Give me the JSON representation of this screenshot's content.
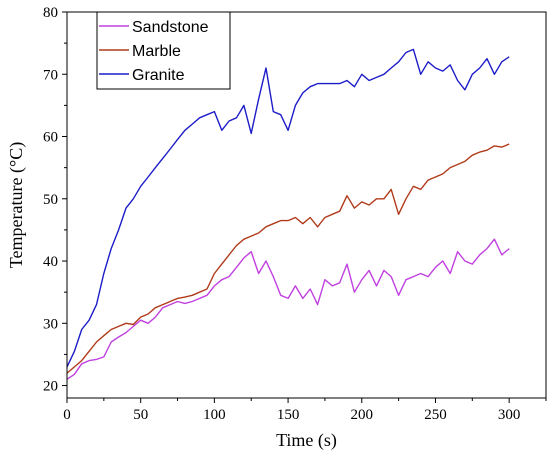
{
  "chart_data": {
    "type": "line",
    "title": "",
    "xlabel": "Time (s)",
    "ylabel": "Temperature (°C)",
    "xlim": [
      0,
      325
    ],
    "ylim": [
      18,
      80
    ],
    "xticks": [
      0,
      50,
      100,
      150,
      200,
      250,
      300
    ],
    "yticks": [
      20,
      30,
      40,
      50,
      60,
      70,
      80
    ],
    "grid": false,
    "legend_position": "top-left",
    "series": [
      {
        "name": "Sandstone",
        "color": "#c040e0",
        "x": [
          0,
          5,
          10,
          15,
          20,
          25,
          30,
          35,
          40,
          45,
          50,
          55,
          60,
          65,
          70,
          75,
          80,
          85,
          90,
          95,
          100,
          105,
          110,
          115,
          120,
          125,
          130,
          135,
          140,
          145,
          150,
          155,
          160,
          165,
          170,
          175,
          180,
          185,
          190,
          195,
          200,
          205,
          210,
          215,
          220,
          225,
          230,
          235,
          240,
          245,
          250,
          255,
          260,
          265,
          270,
          275,
          280,
          285,
          290,
          295,
          300
        ],
        "values": [
          21,
          21.8,
          23.5,
          24,
          24.2,
          24.6,
          27,
          27.8,
          28.5,
          29.5,
          30.5,
          30,
          31,
          32.5,
          33,
          33.5,
          33.2,
          33.5,
          34,
          34.5,
          36,
          37,
          37.5,
          39,
          40.5,
          41.5,
          38,
          40,
          37.5,
          34.5,
          34,
          36,
          34,
          35.5,
          33,
          37,
          36,
          36.5,
          39.5,
          35,
          37,
          38.5,
          36,
          38.5,
          37.5,
          34.5,
          37,
          37.5,
          38,
          37.5,
          39,
          40,
          38,
          41.5,
          40,
          39.5,
          41,
          42,
          43.5,
          41,
          42
        ]
      },
      {
        "name": "Marble",
        "color": "#b03a1a",
        "x": [
          0,
          5,
          10,
          15,
          20,
          25,
          30,
          35,
          40,
          45,
          50,
          55,
          60,
          65,
          70,
          75,
          80,
          85,
          90,
          95,
          100,
          105,
          110,
          115,
          120,
          125,
          130,
          135,
          140,
          145,
          150,
          155,
          160,
          165,
          170,
          175,
          180,
          185,
          190,
          195,
          200,
          205,
          210,
          215,
          220,
          225,
          230,
          235,
          240,
          245,
          250,
          255,
          260,
          265,
          270,
          275,
          280,
          285,
          290,
          295,
          300
        ],
        "values": [
          22,
          23,
          24,
          25.5,
          27,
          28,
          29,
          29.5,
          30,
          29.8,
          31,
          31.5,
          32.5,
          33,
          33.5,
          34,
          34.2,
          34.5,
          35,
          35.5,
          38,
          39.5,
          41,
          42.5,
          43.5,
          44,
          44.5,
          45.5,
          46,
          46.5,
          46.5,
          47,
          46,
          47,
          45.5,
          47,
          47.5,
          48,
          50.5,
          48.5,
          49.5,
          49,
          50,
          50,
          51.5,
          47.5,
          50,
          52,
          51.5,
          53,
          53.5,
          54,
          55,
          55.5,
          56,
          57,
          57.5,
          57.8,
          58.5,
          58.3,
          58.8
        ]
      },
      {
        "name": "Granite",
        "color": "#1c1cc8",
        "x": [
          0,
          5,
          10,
          15,
          20,
          25,
          30,
          35,
          40,
          45,
          50,
          55,
          60,
          65,
          70,
          75,
          80,
          85,
          90,
          95,
          100,
          105,
          110,
          115,
          120,
          125,
          130,
          135,
          140,
          145,
          150,
          155,
          160,
          165,
          170,
          175,
          180,
          185,
          190,
          195,
          200,
          205,
          210,
          215,
          220,
          225,
          230,
          235,
          240,
          245,
          250,
          255,
          260,
          265,
          270,
          275,
          280,
          285,
          290,
          295,
          300
        ],
        "values": [
          23,
          25.5,
          29,
          30.5,
          33,
          38,
          42,
          45,
          48.5,
          50,
          52,
          53.5,
          55,
          56.5,
          58,
          59.5,
          61,
          62,
          63,
          63.5,
          64,
          61,
          62.5,
          63,
          65,
          60.5,
          66,
          71,
          64,
          63.5,
          61,
          65,
          67,
          68,
          68.5,
          68.5,
          68.5,
          68.5,
          69,
          68,
          70,
          69,
          69.5,
          70,
          71,
          72,
          73.5,
          74,
          70,
          72,
          71,
          70.5,
          71.5,
          69,
          67.5,
          70,
          71,
          72.5,
          70,
          72,
          72.8
        ]
      }
    ]
  }
}
